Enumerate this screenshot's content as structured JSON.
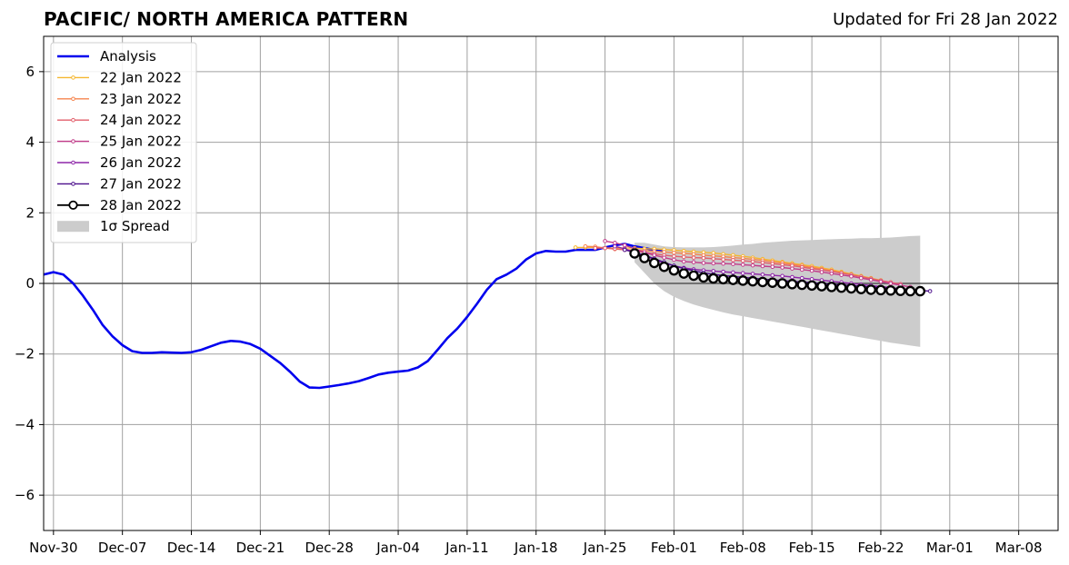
{
  "chart_data": {
    "type": "line",
    "title": "PACIFIC/ NORTH AMERICA PATTERN",
    "subtitle": "Updated for Fri 28 Jan 2022",
    "xlabel": "",
    "ylabel": "",
    "xlim": [
      "2021-11-29",
      "2022-03-12"
    ],
    "ylim": [
      -7,
      7
    ],
    "grid": true,
    "legend_position": "top-left",
    "x_ticks": [
      "Nov-30",
      "Dec-07",
      "Dec-14",
      "Dec-21",
      "Dec-28",
      "Jan-04",
      "Jan-11",
      "Jan-18",
      "Jan-25",
      "Feb-01",
      "Feb-08",
      "Feb-15",
      "Feb-22",
      "Mar-01",
      "Mar-08"
    ],
    "y_ticks": [
      "−6",
      "−4",
      "−2",
      "0",
      "2",
      "4",
      "6"
    ],
    "analysis": {
      "name": "Analysis",
      "color": "#0000ee",
      "start_date": "2021-11-29",
      "values": [
        0.25,
        0.32,
        0.25,
        0.0,
        -0.35,
        -0.75,
        -1.18,
        -1.5,
        -1.75,
        -1.92,
        -1.97,
        -1.97,
        -1.95,
        -1.96,
        -1.97,
        -1.95,
        -1.88,
        -1.78,
        -1.68,
        -1.63,
        -1.65,
        -1.72,
        -1.85,
        -2.05,
        -2.25,
        -2.5,
        -2.78,
        -2.95,
        -2.96,
        -2.92,
        -2.88,
        -2.83,
        -2.77,
        -2.68,
        -2.58,
        -2.53,
        -2.5,
        -2.47,
        -2.38,
        -2.2,
        -1.88,
        -1.55,
        -1.28,
        -0.95,
        -0.58,
        -0.18,
        0.12,
        0.25,
        0.42,
        0.68,
        0.85,
        0.92,
        0.9,
        0.9,
        0.95,
        0.95,
        0.95,
        1.02,
        1.08,
        1.12,
        1.05,
        1.0,
        0.95,
        0.9
      ]
    },
    "forecasts": [
      {
        "name": "22 Jan 2022",
        "color": "#f5b731",
        "start_date": "2022-01-22",
        "values": [
          1.02,
          1.02,
          1.02,
          1.0,
          1.0,
          1.0,
          1.0,
          0.98,
          0.98,
          0.96,
          0.94,
          0.92,
          0.9,
          0.88,
          0.86,
          0.83,
          0.8,
          0.77,
          0.73,
          0.69,
          0.65,
          0.61,
          0.57,
          0.53,
          0.49,
          0.44,
          0.39,
          0.33,
          0.27,
          0.21,
          0.15,
          0.09
        ]
      },
      {
        "name": "23 Jan 2022",
        "color": "#f6854f",
        "start_date": "2022-01-23",
        "values": [
          1.05,
          1.04,
          1.0,
          0.97,
          0.96,
          0.94,
          0.93,
          0.91,
          0.89,
          0.87,
          0.85,
          0.83,
          0.8,
          0.78,
          0.76,
          0.73,
          0.71,
          0.68,
          0.65,
          0.61,
          0.58,
          0.54,
          0.5,
          0.45,
          0.41,
          0.36,
          0.3,
          0.25,
          0.19,
          0.14,
          0.08,
          0.03
        ]
      },
      {
        "name": "24 Jan 2022",
        "color": "#e25f6b",
        "start_date": "2022-01-24",
        "values": [
          1.0,
          1.0,
          0.98,
          0.95,
          0.92,
          0.88,
          0.84,
          0.8,
          0.77,
          0.75,
          0.73,
          0.72,
          0.7,
          0.68,
          0.66,
          0.64,
          0.62,
          0.59,
          0.56,
          0.53,
          0.5,
          0.46,
          0.42,
          0.38,
          0.34,
          0.29,
          0.24,
          0.19,
          0.13,
          0.08,
          0.03,
          -0.02
        ]
      },
      {
        "name": "25 Jan 2022",
        "color": "#c23b8a",
        "start_date": "2022-01-25",
        "values": [
          1.2,
          1.15,
          1.08,
          0.98,
          0.88,
          0.8,
          0.73,
          0.67,
          0.62,
          0.6,
          0.58,
          0.57,
          0.56,
          0.55,
          0.53,
          0.51,
          0.49,
          0.47,
          0.45,
          0.42,
          0.39,
          0.36,
          0.32,
          0.28,
          0.24,
          0.2,
          0.15,
          0.1,
          0.05,
          0.0,
          -0.05,
          -0.1
        ]
      },
      {
        "name": "26 Jan 2022",
        "color": "#8e26a8",
        "start_date": "2022-01-26",
        "values": [
          1.05,
          0.98,
          0.88,
          0.78,
          0.68,
          0.58,
          0.5,
          0.44,
          0.4,
          0.37,
          0.35,
          0.33,
          0.31,
          0.29,
          0.27,
          0.25,
          0.23,
          0.21,
          0.18,
          0.15,
          0.12,
          0.09,
          0.06,
          0.03,
          0.0,
          -0.03,
          -0.06,
          -0.09,
          -0.12,
          -0.15,
          -0.18,
          -0.21
        ]
      },
      {
        "name": "27 Jan 2022",
        "color": "#4c0f8c",
        "start_date": "2022-01-27",
        "values": [
          0.95,
          0.88,
          0.8,
          0.7,
          0.6,
          0.5,
          0.42,
          0.36,
          0.3,
          0.26,
          0.22,
          0.2,
          0.17,
          0.15,
          0.12,
          0.1,
          0.08,
          0.06,
          0.04,
          0.02,
          0.0,
          -0.02,
          -0.04,
          -0.06,
          -0.08,
          -0.1,
          -0.12,
          -0.14,
          -0.16,
          -0.18,
          -0.2,
          -0.22
        ]
      },
      {
        "name": "28 Jan 2022",
        "color": "#000000",
        "start_date": "2022-01-28",
        "values": [
          0.85,
          0.72,
          0.58,
          0.47,
          0.37,
          0.28,
          0.22,
          0.17,
          0.14,
          0.12,
          0.1,
          0.08,
          0.06,
          0.04,
          0.02,
          0.0,
          -0.02,
          -0.04,
          -0.06,
          -0.08,
          -0.1,
          -0.12,
          -0.14,
          -0.16,
          -0.18,
          -0.19,
          -0.2,
          -0.21,
          -0.22,
          -0.22
        ]
      }
    ],
    "spread": {
      "name": "1σ Spread",
      "color": "#cccccc",
      "start_date": "2022-01-28",
      "upper": [
        1.15,
        1.15,
        1.1,
        1.05,
        1.03,
        1.02,
        1.02,
        1.02,
        1.03,
        1.05,
        1.07,
        1.1,
        1.12,
        1.15,
        1.17,
        1.19,
        1.21,
        1.22,
        1.23,
        1.24,
        1.25,
        1.26,
        1.27,
        1.28,
        1.28,
        1.29,
        1.3,
        1.32,
        1.34,
        1.35
      ],
      "lower": [
        0.6,
        0.3,
        0.0,
        -0.22,
        -0.38,
        -0.5,
        -0.6,
        -0.68,
        -0.75,
        -0.82,
        -0.88,
        -0.93,
        -0.98,
        -1.03,
        -1.08,
        -1.13,
        -1.18,
        -1.23,
        -1.28,
        -1.33,
        -1.38,
        -1.43,
        -1.48,
        -1.53,
        -1.58,
        -1.63,
        -1.68,
        -1.72,
        -1.76,
        -1.8
      ]
    }
  }
}
